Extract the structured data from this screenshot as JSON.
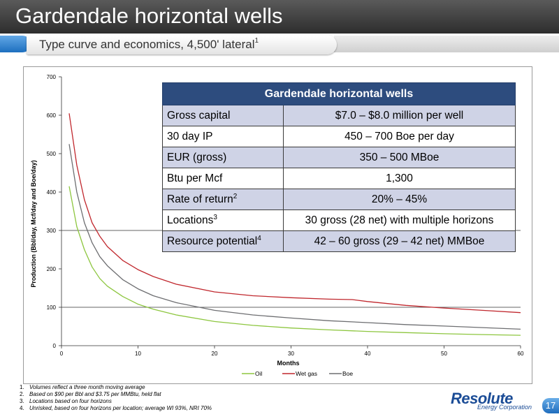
{
  "slide": {
    "title": "Gardendale horizontal wells",
    "subtitle": "Type curve and economics, 4,500' lateral",
    "subtitle_sup": "1",
    "page_number": "17"
  },
  "table": {
    "header": "Gardendale horizontal wells",
    "rows": [
      {
        "label": "Gross capital",
        "sup": "",
        "value": "$7.0 – $8.0 million per well"
      },
      {
        "label": "30 day IP",
        "sup": "",
        "value": "450 – 700 Boe per day"
      },
      {
        "label": "EUR (gross)",
        "sup": "",
        "value": "350 – 500 MBoe"
      },
      {
        "label": "Btu per Mcf",
        "sup": "",
        "value": "1,300"
      },
      {
        "label": "Rate of return",
        "sup": "2",
        "value": "20% – 45%"
      },
      {
        "label": "Locations",
        "sup": "3",
        "value": "30 gross (28 net) with multiple horizons"
      },
      {
        "label": "Resource potential",
        "sup": "4",
        "value": "42 – 60 gross (29 – 42 net) MMBoe"
      }
    ]
  },
  "footnotes": [
    {
      "num": "1.",
      "text": "Volumes reflect a three month moving average"
    },
    {
      "num": "2.",
      "text": "Based on $90 per Bbl and $3.75 per MMBtu, held flat"
    },
    {
      "num": "3.",
      "text": "Locations based on four horizons"
    },
    {
      "num": "4.",
      "text": "Unrisked, based on four horizons per location; average WI 93%, NRI 70%"
    }
  ],
  "logo": {
    "brand": "Resolute",
    "tagline": "Energy Corporation"
  },
  "chart_data": {
    "type": "line",
    "title": "",
    "xlabel": "Months",
    "ylabel": "Production (Bbl/day, Mcf/day and Boe/day)",
    "xlim": [
      0,
      60
    ],
    "ylim": [
      0,
      700
    ],
    "xticks": [
      "0",
      "10",
      "20",
      "30",
      "40",
      "50",
      "60"
    ],
    "yticks": [
      "0",
      "100",
      "200",
      "300",
      "400",
      "500",
      "600",
      "700"
    ],
    "ygrid": [
      100,
      300
    ],
    "legend_position": "bottom",
    "series": [
      {
        "name": "Oil",
        "color": "#8dc63f",
        "x": [
          1,
          2,
          3,
          4,
          5,
          6,
          8,
          10,
          12,
          15,
          20,
          25,
          30,
          35,
          40,
          45,
          50,
          55,
          60
        ],
        "y": [
          415,
          310,
          250,
          205,
          175,
          155,
          128,
          108,
          95,
          80,
          63,
          53,
          46,
          41,
          37,
          34,
          31,
          29,
          27
        ]
      },
      {
        "name": "Wet gas",
        "color": "#c0272d",
        "x": [
          1,
          2,
          3,
          4,
          5,
          6,
          8,
          10,
          12,
          15,
          20,
          25,
          30,
          35,
          38,
          40,
          45,
          50,
          55,
          60
        ],
        "y": [
          605,
          470,
          380,
          320,
          285,
          258,
          222,
          198,
          180,
          160,
          140,
          130,
          125,
          121,
          120,
          115,
          105,
          98,
          92,
          86
        ]
      },
      {
        "name": "Boe",
        "color": "#6d6e71",
        "x": [
          1,
          2,
          3,
          4,
          5,
          6,
          8,
          10,
          12,
          15,
          20,
          25,
          30,
          35,
          40,
          45,
          50,
          55,
          60
        ],
        "y": [
          525,
          400,
          320,
          268,
          232,
          208,
          172,
          148,
          130,
          112,
          92,
          80,
          72,
          65,
          60,
          55,
          51,
          47,
          43
        ]
      }
    ]
  }
}
